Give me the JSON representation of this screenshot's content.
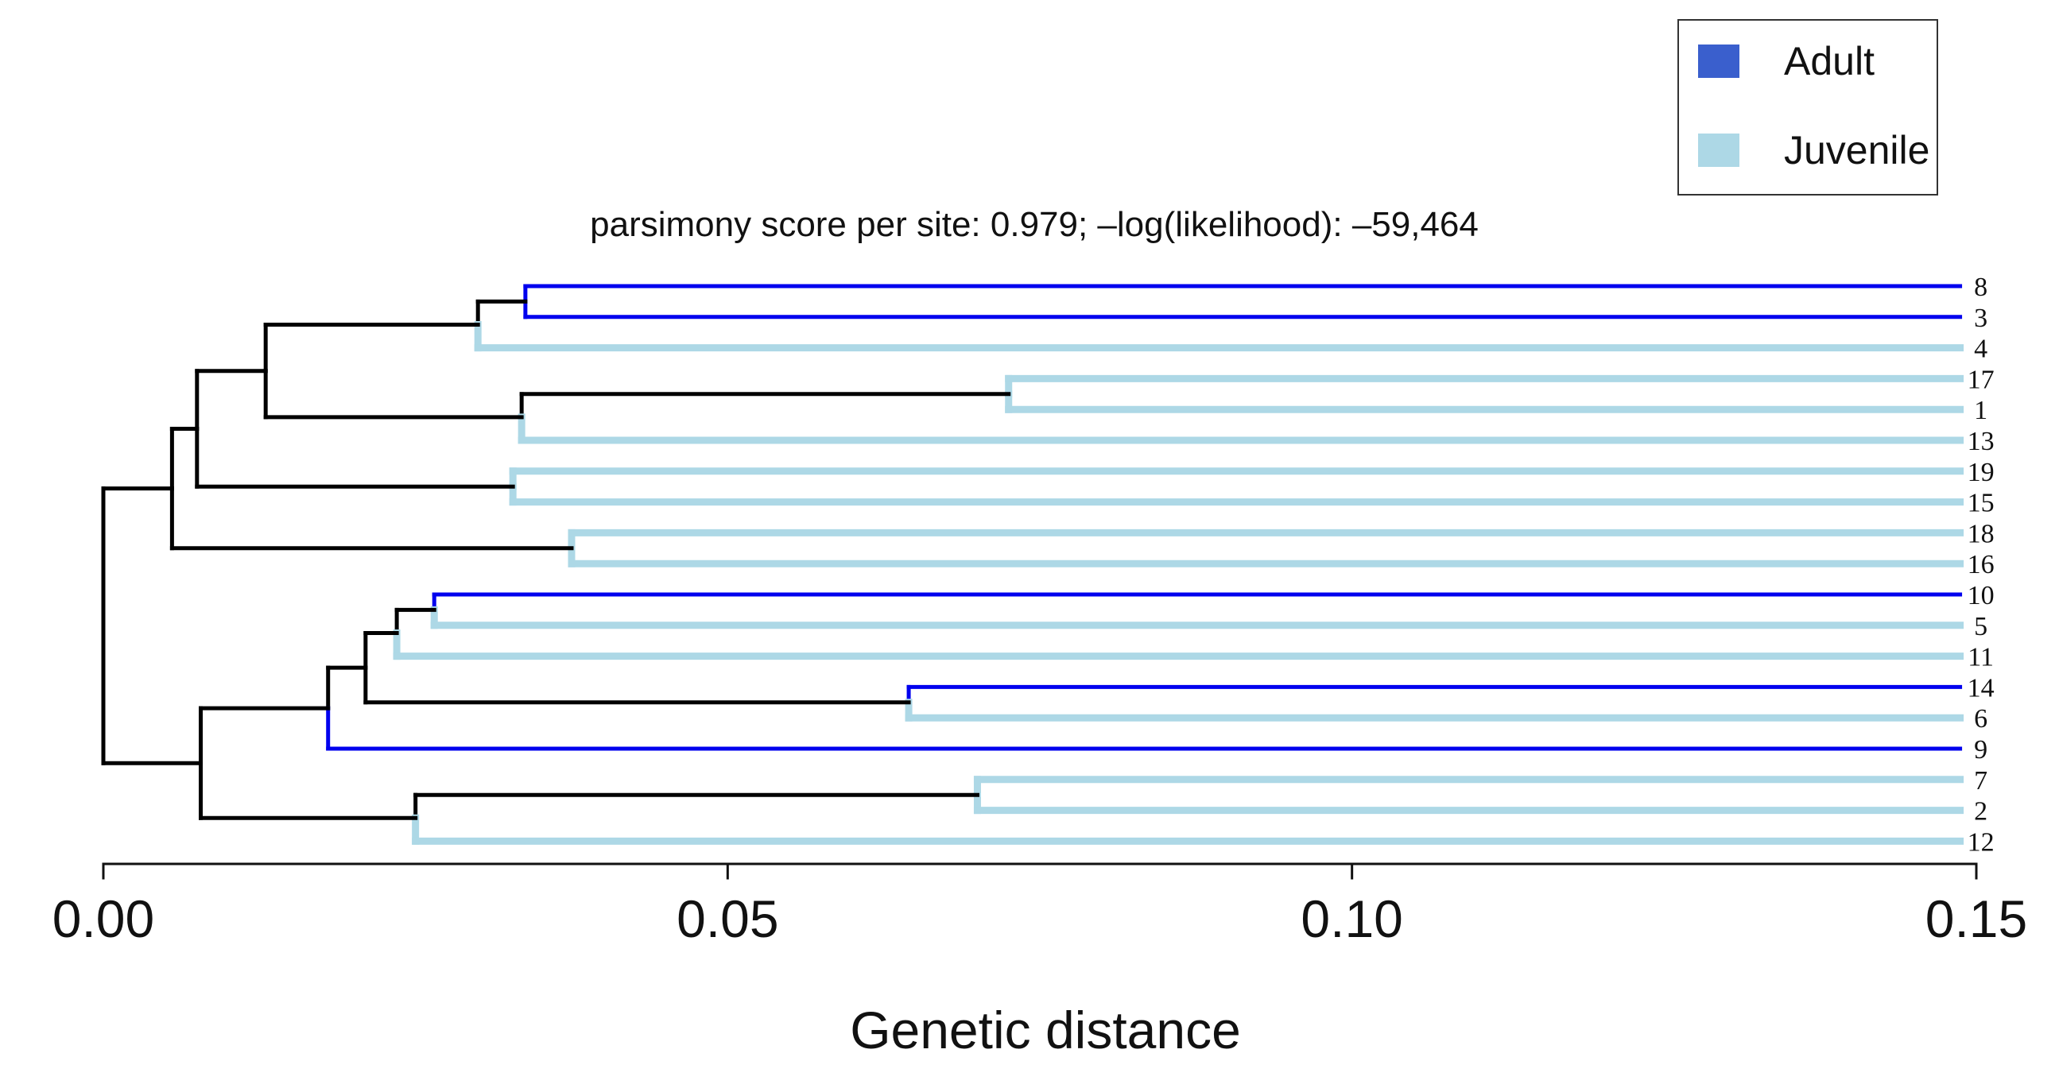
{
  "chart_data": {
    "type": "dendrogram",
    "subtitle": "parsimony score per site: 0.979; –log(likelihood): –59,464",
    "xlabel": "Genetic distance",
    "xlim": [
      0.0,
      0.15
    ],
    "xticks": [
      "0.00",
      "0.05",
      "0.10",
      "0.15"
    ],
    "legend": {
      "position": "top-right",
      "entries": [
        {
          "name": "Adult",
          "color": "#3a5fcd"
        },
        {
          "name": "Juvenile",
          "color": "#add8e6"
        }
      ]
    },
    "colors": {
      "internal": "#000000",
      "adult": "#0000ee",
      "juvenile": "#add8e6"
    },
    "leaf_order": [
      "8",
      "3",
      "4",
      "17",
      "1",
      "13",
      "19",
      "15",
      "18",
      "16",
      "10",
      "5",
      "11",
      "14",
      "6",
      "9",
      "7",
      "2",
      "12"
    ],
    "leaf_distance": 0.1487,
    "leaves": {
      "8": "Adult",
      "3": "Adult",
      "4": "Juvenile",
      "17": "Juvenile",
      "1": "Juvenile",
      "13": "Juvenile",
      "19": "Juvenile",
      "15": "Juvenile",
      "18": "Juvenile",
      "16": "Juvenile",
      "10": "Adult",
      "5": "Juvenile",
      "11": "Juvenile",
      "14": "Adult",
      "6": "Juvenile",
      "9": "Adult",
      "7": "Juvenile",
      "2": "Juvenile",
      "12": "Juvenile"
    },
    "tree": {
      "h": 0.0,
      "children": [
        {
          "h": 0.0055,
          "children": [
            {
              "h": 0.0075,
              "children": [
                {
                  "h": 0.013,
                  "children": [
                    {
                      "h": 0.03,
                      "children": [
                        {
                          "h": 0.0338,
                          "children": [
                            {
                              "leaf": "8"
                            },
                            {
                              "leaf": "3"
                            }
                          ]
                        },
                        {
                          "leaf": "4"
                        }
                      ]
                    },
                    {
                      "h": 0.0335,
                      "children": [
                        {
                          "h": 0.0725,
                          "children": [
                            {
                              "leaf": "17"
                            },
                            {
                              "leaf": "1"
                            }
                          ]
                        },
                        {
                          "leaf": "13"
                        }
                      ]
                    }
                  ]
                },
                {
                  "h": 0.0328,
                  "children": [
                    {
                      "leaf": "19"
                    },
                    {
                      "leaf": "15"
                    }
                  ]
                }
              ]
            },
            {
              "h": 0.0375,
              "children": [
                {
                  "leaf": "18"
                },
                {
                  "leaf": "16"
                }
              ]
            }
          ]
        },
        {
          "h": 0.0078,
          "children": [
            {
              "h": 0.018,
              "children": [
                {
                  "h": 0.021,
                  "children": [
                    {
                      "h": 0.0235,
                      "children": [
                        {
                          "h": 0.0265,
                          "children": [
                            {
                              "leaf": "10"
                            },
                            {
                              "leaf": "5"
                            }
                          ]
                        },
                        {
                          "leaf": "11"
                        }
                      ]
                    },
                    {
                      "h": 0.0645,
                      "children": [
                        {
                          "leaf": "14"
                        },
                        {
                          "leaf": "6"
                        }
                      ]
                    }
                  ]
                },
                {
                  "leaf": "9"
                }
              ]
            },
            {
              "h": 0.025,
              "children": [
                {
                  "h": 0.07,
                  "children": [
                    {
                      "leaf": "7"
                    },
                    {
                      "leaf": "2"
                    }
                  ]
                },
                {
                  "leaf": "12"
                }
              ]
            }
          ]
        }
      ]
    }
  }
}
